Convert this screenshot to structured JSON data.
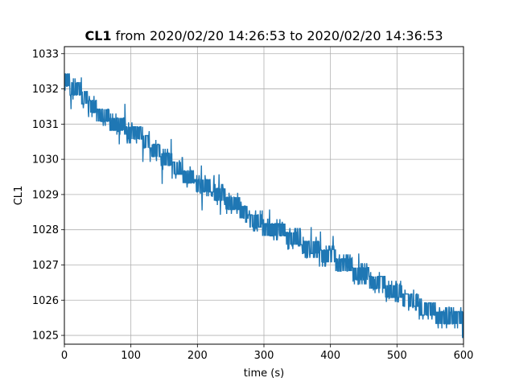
{
  "chart_data": {
    "type": "line",
    "title_bold": "CL1",
    "title_rest": " from 2020/02/20 14:26:53 to 2020/02/20 14:36:53",
    "xlabel": "time (s)",
    "ylabel": "CL1",
    "xlim": [
      0,
      600
    ],
    "ylim": [
      1024.75,
      1033.2
    ],
    "xticks": [
      0,
      100,
      200,
      300,
      400,
      500,
      600
    ],
    "yticks": [
      1025,
      1026,
      1027,
      1028,
      1029,
      1030,
      1031,
      1032,
      1033
    ],
    "xtick_labels": [
      "0",
      "100",
      "200",
      "300",
      "400",
      "500",
      "600"
    ],
    "ytick_labels": [
      "1025",
      "1026",
      "1027",
      "1028",
      "1029",
      "1030",
      "1031",
      "1032",
      "1033"
    ],
    "grid": true,
    "line_color": "#1f77b4",
    "series": [
      {
        "x": [
          0,
          20,
          40,
          60,
          80,
          100,
          120,
          140,
          160,
          180,
          200,
          220,
          240,
          260,
          280,
          300,
          320,
          340,
          360,
          380,
          400,
          420,
          440,
          460,
          480,
          500,
          520,
          540,
          560,
          580,
          600
        ],
        "y": [
          1032.2,
          1032.0,
          1031.5,
          1031.2,
          1031.0,
          1030.8,
          1030.6,
          1030.2,
          1029.9,
          1029.6,
          1029.3,
          1029.2,
          1028.9,
          1028.7,
          1028.3,
          1028.1,
          1028.0,
          1027.8,
          1027.6,
          1027.4,
          1027.2,
          1027.0,
          1026.8,
          1026.6,
          1026.4,
          1026.2,
          1026.0,
          1025.8,
          1025.6,
          1025.5,
          1025.5
        ],
        "noise_band": 0.5
      }
    ]
  }
}
